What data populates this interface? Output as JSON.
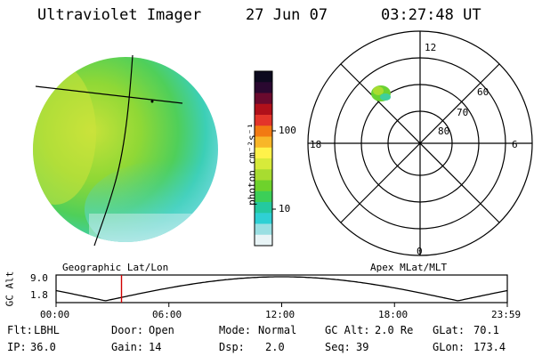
{
  "header": {
    "instrument": "Ultraviolet Imager",
    "date": "27 Jun 07",
    "time": "03:27:48 UT"
  },
  "image_panel": {
    "label": "Geographic Lat/Lon"
  },
  "colorbar": {
    "unit_label": "photon cm⁻²s⁻¹",
    "ticks": [
      "100",
      "10"
    ],
    "colors": [
      "#0d0a1f",
      "#2a0830",
      "#6a0a2e",
      "#b0101a",
      "#e3352a",
      "#f27a12",
      "#f8b628",
      "#fff24a",
      "#d7ea3a",
      "#a8dc30",
      "#6ed22c",
      "#3ccf58",
      "#24c9a0",
      "#2fd0d4",
      "#9adfe2",
      "#e8f4f6"
    ]
  },
  "polar_panel": {
    "label": "Apex MLat/MLT",
    "mlt_labels": {
      "top": "12",
      "left": "18",
      "right": "6",
      "bottom": "0"
    },
    "lat_labels": [
      "60",
      "70",
      "80"
    ]
  },
  "altitude_plot": {
    "ylabel": "GC Alt",
    "ytick_top": "9.0",
    "ytick_bottom": "1.8",
    "xticks": [
      "00:00",
      "06:00",
      "12:00",
      "18:00",
      "23:59"
    ],
    "current_time_fraction": 0.145
  },
  "status": {
    "flt_label": "Flt:",
    "flt_value": "LBHL",
    "ip_label": "IP:",
    "ip_value": "36.0",
    "door_label": "Door:",
    "door_value": "Open",
    "gain_label": "Gain:",
    "gain_value": "14",
    "mode_label": "Mode:",
    "mode_value": "Normal",
    "dsp_label": "Dsp:",
    "dsp_value": "2.0",
    "gcalt_label": "GC Alt:",
    "gcalt_value": "2.0 Re",
    "seq_label": "Seq:",
    "seq_value": "39",
    "glat_label": "GLat:",
    "glat_value": "70.1",
    "glon_label": "GLon:",
    "glon_value": "173.4"
  }
}
